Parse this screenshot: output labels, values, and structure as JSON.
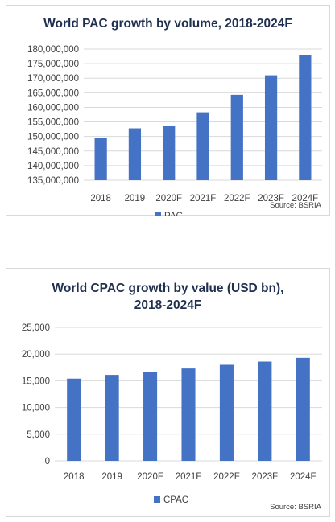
{
  "chart_data": [
    {
      "type": "bar",
      "title": "World PAC growth by volume, 2018-2024F",
      "categories": [
        "2018",
        "2019",
        "2020F",
        "2021F",
        "2022F",
        "2023F",
        "2024F"
      ],
      "series": [
        {
          "name": "PAC",
          "values": [
            149500000,
            152800000,
            153500000,
            158300000,
            164300000,
            171000000,
            177800000
          ]
        }
      ],
      "ylim": [
        135000000,
        180000000
      ],
      "yticks": [
        "135,000,000",
        "140,000,000",
        "145,000,000",
        "150,000,000",
        "155,000,000",
        "160,000,000",
        "165,000,000",
        "170,000,000",
        "175,000,000",
        "180,000,000"
      ],
      "ytick_values": [
        135000000,
        140000000,
        145000000,
        150000000,
        155000000,
        160000000,
        165000000,
        170000000,
        175000000,
        180000000
      ],
      "grid": true,
      "legend": "bottom",
      "source": "Source: BSRIA",
      "bar_color": "#4472c4"
    },
    {
      "type": "bar",
      "title_lines": [
        "World CPAC growth by value (USD bn),",
        "2018-2024F"
      ],
      "categories": [
        "2018",
        "2019",
        "2020F",
        "2021F",
        "2022F",
        "2023F",
        "2024F"
      ],
      "series": [
        {
          "name": "CPAC",
          "values": [
            15400,
            16100,
            16600,
            17300,
            18000,
            18600,
            19300
          ]
        }
      ],
      "ylim": [
        0,
        25000
      ],
      "yticks": [
        "0",
        "5,000",
        "10,000",
        "15,000",
        "20,000",
        "25,000"
      ],
      "ytick_values": [
        0,
        5000,
        10000,
        15000,
        20000,
        25000
      ],
      "grid": true,
      "legend": "bottom",
      "source": "Source: BSRIA",
      "bar_color": "#4472c4"
    }
  ]
}
